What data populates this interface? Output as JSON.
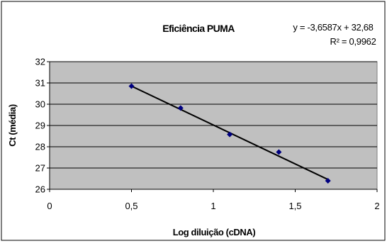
{
  "chart_data": {
    "type": "scatter",
    "title": "Eficiência PUMA",
    "xlabel": "Log diluição (cDNA)",
    "ylabel": "Ct (média)",
    "xlim": [
      0,
      2
    ],
    "ylim": [
      26,
      32
    ],
    "xticks": [
      "0",
      "0,5",
      "1",
      "1,5",
      "2"
    ],
    "yticks": [
      "26",
      "27",
      "28",
      "29",
      "30",
      "31",
      "32"
    ],
    "grid": true,
    "points": [
      {
        "x": 0.5,
        "y": 30.85
      },
      {
        "x": 0.8,
        "y": 29.82
      },
      {
        "x": 1.1,
        "y": 28.58
      },
      {
        "x": 1.4,
        "y": 27.75
      },
      {
        "x": 1.7,
        "y": 26.4
      }
    ],
    "trendline": {
      "slope": -3.6587,
      "intercept": 32.68,
      "x_range": [
        0.5,
        1.7
      ]
    },
    "equation_label": "y = -3,6587x + 32,68",
    "r2_label": "R² = 0,9962",
    "colors": {
      "plot_bg": "#c0c0c0",
      "marker": "#000080",
      "line": "#000000",
      "grid": "#000000"
    }
  }
}
